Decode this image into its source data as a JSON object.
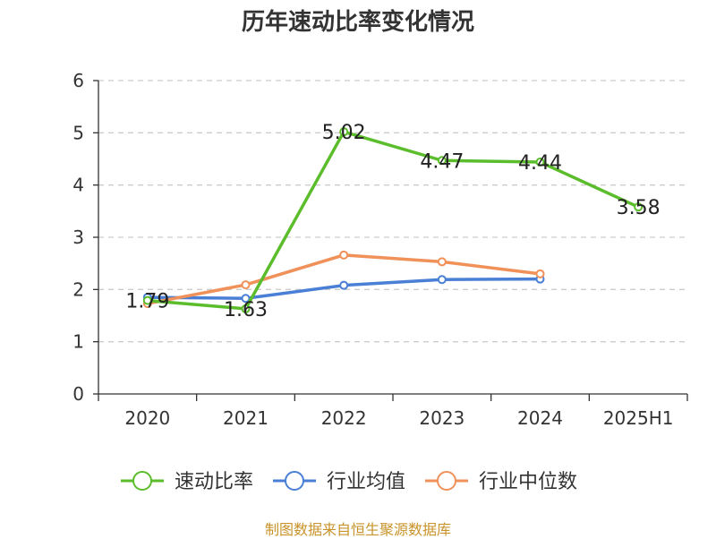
{
  "footer": "制图数据来自恒生聚源数据库",
  "chart_data": {
    "type": "line",
    "title": "历年速动比率变化情况",
    "xlabel": "",
    "ylabel": "",
    "categories": [
      "2020",
      "2021",
      "2022",
      "2023",
      "2024",
      "2025H1"
    ],
    "ylim": [
      0,
      6
    ],
    "yticks": [
      0,
      1,
      2,
      3,
      4,
      5,
      6
    ],
    "grid": true,
    "legend_position": "bottom",
    "series": [
      {
        "name": "速动比率",
        "color": "#5bbd2b",
        "values": [
          1.79,
          1.63,
          5.02,
          4.47,
          4.44,
          3.58
        ],
        "labels": [
          "1.79",
          "1.63",
          "5.02",
          "4.47",
          "4.44",
          "3.58"
        ]
      },
      {
        "name": "行业均值",
        "color": "#4a7fd6",
        "values": [
          1.85,
          1.83,
          2.08,
          2.19,
          2.2,
          null
        ]
      },
      {
        "name": "行业中位数",
        "color": "#f0915a",
        "values": [
          1.73,
          2.09,
          2.66,
          2.53,
          2.3,
          null
        ]
      }
    ]
  }
}
